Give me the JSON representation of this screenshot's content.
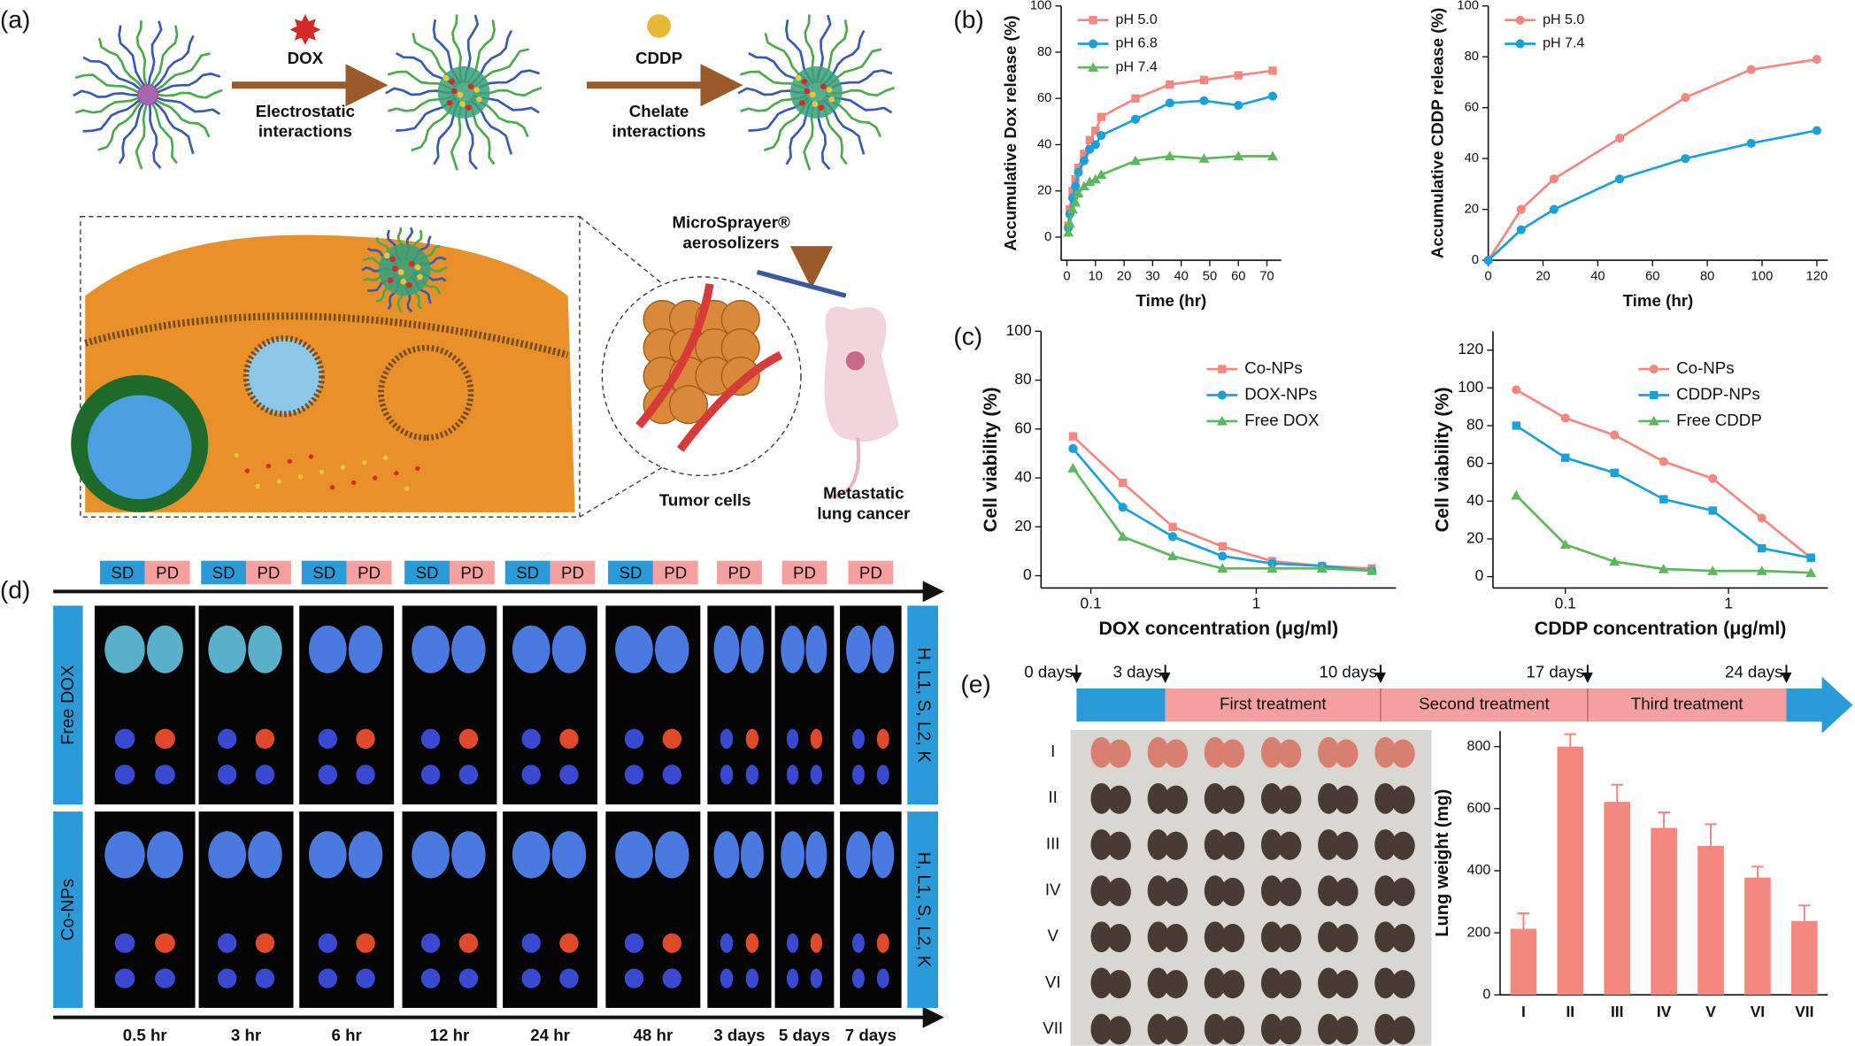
{
  "panel_a": {
    "label": "(a)",
    "drug1": "DOX",
    "drug1_interaction": [
      "Electrostatic",
      "interactions"
    ],
    "drug2": "CDDP",
    "drug2_interaction": [
      "Chelate",
      "interactions"
    ],
    "delivery": [
      "MicroSprayer®",
      "aerosolizers"
    ],
    "tumor": "Tumor cells",
    "model": [
      "Metastatic",
      "lung cancer"
    ]
  },
  "panel_b": {
    "label": "(b)"
  },
  "panel_c": {
    "label": "(c)"
  },
  "panel_d": {
    "label": "(d)",
    "stages": [
      [
        "SD",
        "PD"
      ],
      [
        "SD",
        "PD"
      ],
      [
        "SD",
        "PD"
      ],
      [
        "SD",
        "PD"
      ],
      [
        "SD",
        "PD"
      ],
      [
        "SD",
        "PD"
      ],
      [
        "PD"
      ],
      [
        "PD"
      ],
      [
        "PD"
      ]
    ],
    "groups": [
      "Free DOX",
      "Co-NPs"
    ],
    "organs": "H, L1, S, L2, K",
    "times": [
      "0.5 hr",
      "3 hr",
      "6 hr",
      "12 hr",
      "24 hr",
      "48 hr",
      "3 days",
      "5 days",
      "7 days"
    ]
  },
  "panel_e": {
    "label": "(e)",
    "days": [
      "0 days",
      "3 days",
      "10 days",
      "17 days",
      "24 days"
    ],
    "treatments": [
      "First treatment",
      "Second treatment",
      "Third treatment"
    ],
    "groups": [
      "I",
      "II",
      "III",
      "IV",
      "V",
      "VI",
      "VII"
    ]
  },
  "chart_data": [
    {
      "type": "line",
      "xlabel": "Time (hr)",
      "ylabel": "Accumulative Dox release (%)",
      "x": [
        0.5,
        1,
        2,
        3,
        4,
        6,
        8,
        10,
        12,
        24,
        36,
        48,
        60,
        72
      ],
      "series": [
        {
          "name": "pH 5.0",
          "color": "#f4877f",
          "marker": "square",
          "values": [
            5,
            12,
            20,
            25,
            30,
            36,
            42,
            46,
            52,
            60,
            66,
            68,
            70,
            72
          ]
        },
        {
          "name": "pH 6.8",
          "color": "#1ba1d8",
          "marker": "circle",
          "values": [
            4,
            10,
            17,
            22,
            28,
            33,
            38,
            40,
            44,
            51,
            58,
            59,
            57,
            61
          ]
        },
        {
          "name": "pH 7.4",
          "color": "#5cb85c",
          "marker": "triangle",
          "values": [
            2,
            6,
            12,
            15,
            19,
            22,
            24,
            25,
            27,
            33,
            35,
            34,
            35,
            35
          ]
        }
      ],
      "xlim": [
        -2,
        75
      ],
      "xticks": [
        0,
        10,
        20,
        30,
        40,
        50,
        60,
        70
      ],
      "ylim": [
        -10,
        100
      ],
      "yticks": [
        0,
        20,
        40,
        60,
        80,
        100
      ],
      "legend": "upper-left"
    },
    {
      "type": "line",
      "xlabel": "Time (hr)",
      "ylabel": "Accumulative CDDP release (%)",
      "x": [
        0,
        12,
        24,
        48,
        72,
        96,
        120
      ],
      "series": [
        {
          "name": "pH 5.0",
          "color": "#f4877f",
          "marker": "circle",
          "values": [
            0,
            20,
            32,
            48,
            64,
            75,
            79
          ]
        },
        {
          "name": "pH 7.4",
          "color": "#1ba1d8",
          "marker": "circle",
          "values": [
            0,
            12,
            20,
            32,
            40,
            46,
            51
          ]
        }
      ],
      "xlim": [
        0,
        124
      ],
      "xticks": [
        0,
        20,
        40,
        60,
        80,
        100,
        120
      ],
      "ylim": [
        0,
        100
      ],
      "yticks": [
        0,
        20,
        40,
        60,
        80,
        100
      ],
      "legend": "upper-left"
    },
    {
      "type": "line",
      "log": true,
      "xlabel": "DOX concentration (μg/ml)",
      "ylabel": "Cell viability (%)",
      "x": [
        0.078,
        0.156,
        0.3125,
        0.625,
        1.25,
        2.5,
        5
      ],
      "series": [
        {
          "name": "Co-NPs",
          "color": "#f4877f",
          "marker": "square",
          "values": [
            57,
            38,
            20,
            12,
            6,
            4,
            3
          ]
        },
        {
          "name": "DOX-NPs",
          "color": "#1ba1d8",
          "marker": "circle",
          "values": [
            52,
            28,
            16,
            8,
            5,
            4,
            2
          ]
        },
        {
          "name": "Free DOX",
          "color": "#5cb85c",
          "marker": "triangle",
          "values": [
            44,
            16,
            8,
            3,
            3,
            3,
            2
          ]
        }
      ],
      "xlim": [
        0.05,
        7
      ],
      "xticks": [
        0.1,
        1
      ],
      "ylim": [
        -5,
        100
      ],
      "yticks": [
        0,
        20,
        40,
        60,
        80,
        100
      ],
      "legend": "upper-right"
    },
    {
      "type": "line",
      "log": true,
      "xlabel": "CDDP concentration (μg/ml)",
      "ylabel": "Cell viability (%)",
      "x": [
        0.05,
        0.1,
        0.2,
        0.4,
        0.8,
        1.6,
        3.2
      ],
      "series": [
        {
          "name": "Co-NPs",
          "color": "#f4877f",
          "marker": "circle",
          "values": [
            99,
            84,
            75,
            61,
            52,
            31,
            10
          ]
        },
        {
          "name": "CDDP-NPs",
          "color": "#1ba1d8",
          "marker": "square",
          "values": [
            80,
            63,
            55,
            41,
            35,
            15,
            10
          ]
        },
        {
          "name": "Free CDDP",
          "color": "#5cb85c",
          "marker": "triangle",
          "values": [
            43,
            17,
            8,
            4,
            3,
            3,
            2
          ]
        }
      ],
      "xlim": [
        0.036,
        4.06
      ],
      "xticks": [
        0.1,
        1
      ],
      "ylim": [
        -6,
        130
      ],
      "yticks": [
        0,
        20,
        40,
        60,
        80,
        100,
        120
      ],
      "legend": "upper-right"
    },
    {
      "type": "bar",
      "ylabel": "Lung  weight (mg)",
      "categories": [
        "I",
        "II",
        "III",
        "IV",
        "V",
        "VI",
        "VII"
      ],
      "values": [
        213,
        800,
        622,
        538,
        480,
        378,
        238
      ],
      "errors": [
        50,
        40,
        55,
        50,
        70,
        35,
        50
      ],
      "color": "#f4877f",
      "ylim": [
        0,
        850
      ],
      "yticks": [
        0,
        200,
        400,
        600,
        800
      ]
    }
  ]
}
